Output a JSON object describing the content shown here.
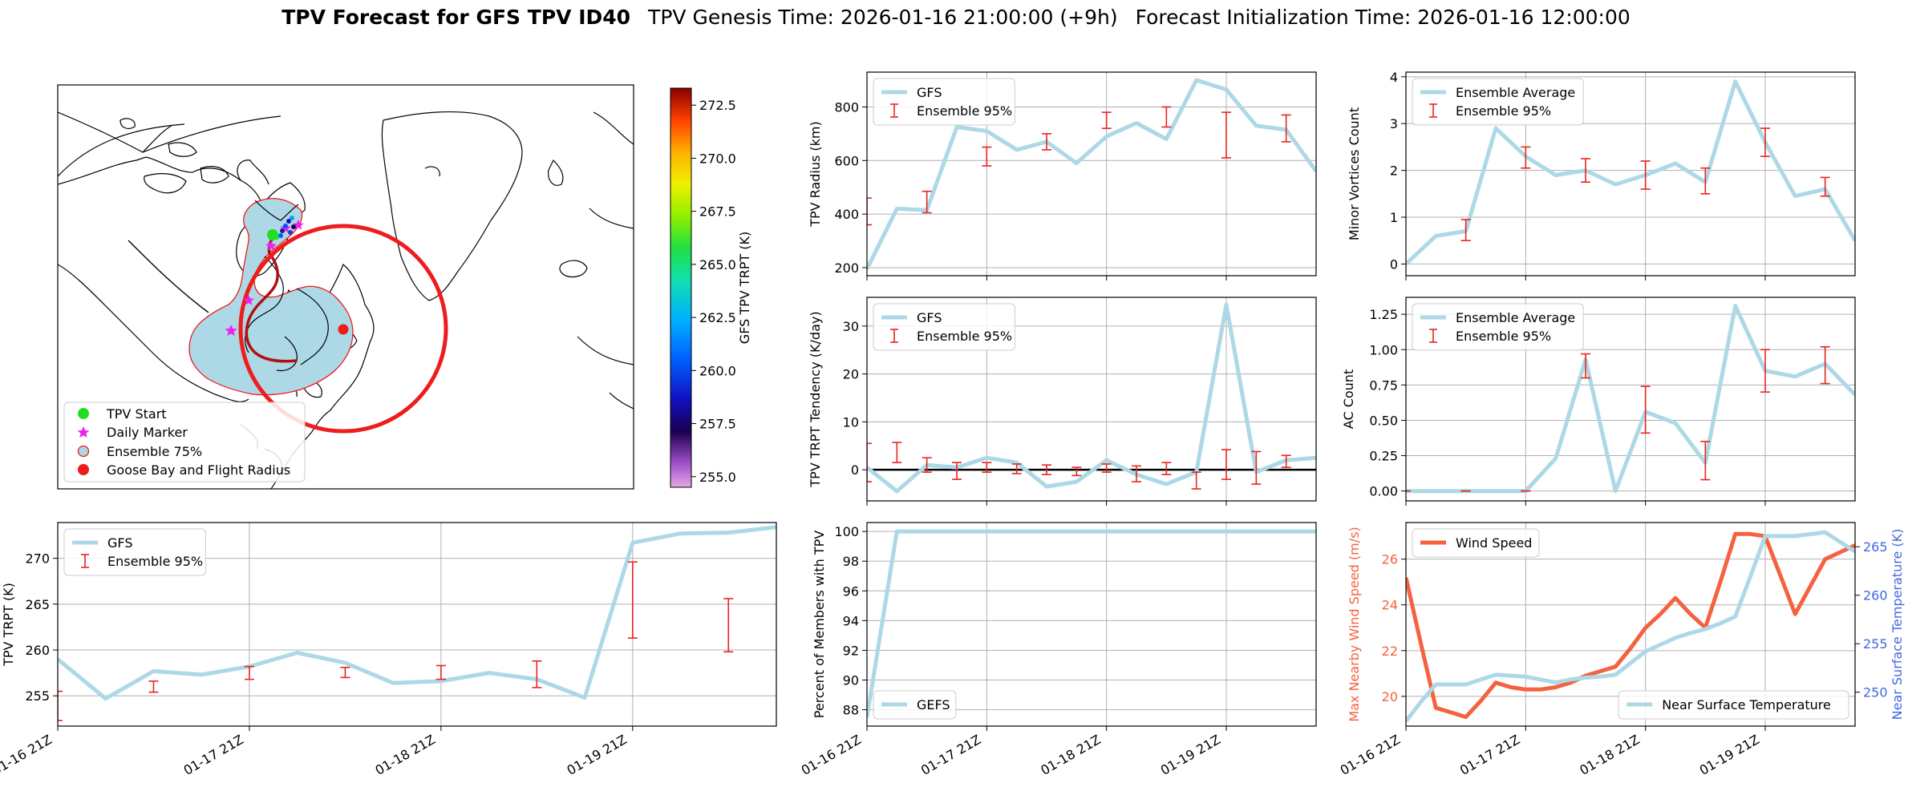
{
  "figure": {
    "title_bold": "TPV Forecast for GFS TPV ID40",
    "title_genesis": "TPV Genesis Time: 2026-01-16 21:00:00 (+9h)",
    "title_init": "Forecast Initialization Time: 2026-01-16 12:00:00"
  },
  "colors": {
    "gfs_line": "#add8e6",
    "errorbar": "#e8251f",
    "wind": "#f4623f",
    "temp_axis": "#4169e1",
    "ensemble_fill": "#add8e6",
    "flight_circle": "#ee1c1c",
    "start_marker": "#22dd22",
    "daily_marker": "#ee22ee"
  },
  "time_labels": [
    "01-16 21Z",
    "01-17 21Z",
    "01-18 21Z",
    "01-19 21Z"
  ],
  "map": {
    "legend": [
      "TPV Start",
      "Daily Marker",
      "Ensemble 75%",
      "Goose Bay and Flight Radius"
    ],
    "colorbar": {
      "label": "GFS TPV TRPT (K)",
      "min": 254.5,
      "max": 273.3,
      "ticks": [
        "272.5",
        "270.0",
        "267.5",
        "265.0",
        "262.5",
        "260.0",
        "257.5",
        "255.0"
      ],
      "tick_values": [
        272.5,
        270.0,
        267.5,
        265.0,
        262.5,
        260.0,
        257.5,
        255.0
      ]
    }
  },
  "chart_data": [
    {
      "id": "radius",
      "type": "line",
      "ylabel": "TPV Radius (km)",
      "ylim": [
        170,
        930
      ],
      "yticks": [
        200,
        400,
        600,
        800
      ],
      "ytick_labels": [
        "200",
        "400",
        "600",
        "800"
      ],
      "legend": [
        "GFS",
        "Ensemble 95%"
      ],
      "x_hours": [
        0,
        6,
        12,
        18,
        24,
        30,
        36,
        42,
        48,
        54,
        60,
        66,
        72,
        78,
        84,
        90
      ],
      "series": [
        {
          "name": "GFS",
          "values": [
            195,
            420,
            415,
            725,
            710,
            640,
            670,
            590,
            690,
            740,
            680,
            900,
            865,
            730,
            715,
            560
          ]
        }
      ],
      "errorbars": [
        {
          "x": 0,
          "low": 360,
          "high": 460
        },
        {
          "x": 12,
          "low": 405,
          "high": 485
        },
        {
          "x": 24,
          "low": 580,
          "high": 650
        },
        {
          "x": 36,
          "low": 640,
          "high": 700
        },
        {
          "x": 48,
          "low": 720,
          "high": 780
        },
        {
          "x": 60,
          "low": 725,
          "high": 800
        },
        {
          "x": 72,
          "low": 610,
          "high": 780
        },
        {
          "x": 84,
          "low": 670,
          "high": 770
        }
      ]
    },
    {
      "id": "minor",
      "type": "line",
      "ylabel": "Minor Vortices Count",
      "ylim": [
        -0.25,
        4.1
      ],
      "yticks": [
        0,
        1,
        2,
        3,
        4
      ],
      "ytick_labels": [
        "0",
        "1",
        "2",
        "3",
        "4"
      ],
      "legend": [
        "Ensemble Average",
        "Ensemble 95%"
      ],
      "x_hours": [
        0,
        6,
        12,
        18,
        24,
        30,
        36,
        42,
        48,
        54,
        60,
        66,
        72,
        78,
        84,
        90
      ],
      "series": [
        {
          "name": "Ensemble Average",
          "values": [
            0,
            0.6,
            0.7,
            2.9,
            2.3,
            1.9,
            2.0,
            1.7,
            1.9,
            2.15,
            1.75,
            3.9,
            2.6,
            1.45,
            1.6,
            0.5
          ]
        }
      ],
      "errorbars": [
        {
          "x": 12,
          "low": 0.5,
          "high": 0.95
        },
        {
          "x": 24,
          "low": 2.05,
          "high": 2.5
        },
        {
          "x": 36,
          "low": 1.75,
          "high": 2.25
        },
        {
          "x": 48,
          "low": 1.6,
          "high": 2.2
        },
        {
          "x": 60,
          "low": 1.5,
          "high": 2.05
        },
        {
          "x": 72,
          "low": 2.3,
          "high": 2.9
        },
        {
          "x": 84,
          "low": 1.45,
          "high": 1.85
        }
      ]
    },
    {
      "id": "tendency",
      "type": "line",
      "ylabel": "TPV TRPT Tendency (K/day)",
      "ylim": [
        -6.5,
        36
      ],
      "yticks": [
        0,
        10,
        20,
        30
      ],
      "ytick_labels": [
        "0",
        "10",
        "20",
        "30"
      ],
      "zero_line": true,
      "legend": [
        "GFS",
        "Ensemble 95%"
      ],
      "x_hours": [
        0,
        6,
        12,
        18,
        24,
        30,
        36,
        42,
        48,
        54,
        60,
        66,
        72,
        78,
        84,
        90
      ],
      "series": [
        {
          "name": "GFS",
          "values": [
            0.5,
            -4.5,
            1.0,
            0.5,
            2.5,
            1.5,
            -3.5,
            -2.5,
            2.0,
            -1.0,
            -3.0,
            -0.5,
            34.5,
            -0.5,
            2.0,
            2.5
          ]
        }
      ],
      "errorbars": [
        {
          "x": 0,
          "low": -2.5,
          "high": 5.5
        },
        {
          "x": 6,
          "low": 1.5,
          "high": 5.7
        },
        {
          "x": 12,
          "low": -0.5,
          "high": 2.5
        },
        {
          "x": 18,
          "low": -2.0,
          "high": 1.5
        },
        {
          "x": 24,
          "low": -0.5,
          "high": 1.5
        },
        {
          "x": 30,
          "low": -0.8,
          "high": 1.2
        },
        {
          "x": 36,
          "low": -1.0,
          "high": 1.0
        },
        {
          "x": 42,
          "low": -1.2,
          "high": 0.5
        },
        {
          "x": 48,
          "low": -0.5,
          "high": 1.2
        },
        {
          "x": 54,
          "low": -2.5,
          "high": 0.8
        },
        {
          "x": 60,
          "low": -1.0,
          "high": 1.5
        },
        {
          "x": 66,
          "low": -4.0,
          "high": -0.5
        },
        {
          "x": 72,
          "low": -2.0,
          "high": 4.2
        },
        {
          "x": 78,
          "low": -3.0,
          "high": 3.8
        },
        {
          "x": 84,
          "low": 0.5,
          "high": 3.0
        }
      ]
    },
    {
      "id": "ac",
      "type": "line",
      "ylabel": "AC Count",
      "ylim": [
        -0.07,
        1.37
      ],
      "yticks": [
        0,
        0.25,
        0.5,
        0.75,
        1.0,
        1.25
      ],
      "ytick_labels": [
        "0.00",
        "0.25",
        "0.50",
        "0.75",
        "1.00",
        "1.25"
      ],
      "legend": [
        "Ensemble Average",
        "Ensemble 95%"
      ],
      "x_hours": [
        0,
        6,
        12,
        18,
        24,
        30,
        36,
        42,
        48,
        54,
        60,
        66,
        72,
        78,
        84,
        90
      ],
      "series": [
        {
          "name": "Ensemble Average",
          "values": [
            0,
            0,
            0,
            0,
            0,
            0.23,
            0.93,
            0,
            0.56,
            0.48,
            0.2,
            1.31,
            0.85,
            0.81,
            0.9,
            0.68
          ]
        }
      ],
      "errorbars": [
        {
          "x": 0,
          "low": 0,
          "high": 0
        },
        {
          "x": 12,
          "low": 0,
          "high": 0
        },
        {
          "x": 24,
          "low": 0,
          "high": 0
        },
        {
          "x": 36,
          "low": 0.8,
          "high": 0.97
        },
        {
          "x": 48,
          "low": 0.41,
          "high": 0.74
        },
        {
          "x": 60,
          "low": 0.08,
          "high": 0.35
        },
        {
          "x": 72,
          "low": 0.7,
          "high": 1.0
        },
        {
          "x": 84,
          "low": 0.76,
          "high": 1.02
        }
      ]
    },
    {
      "id": "trpt",
      "type": "line",
      "ylabel": "TPV TRPT (K)",
      "ylim": [
        251.7,
        273.9
      ],
      "yticks": [
        255,
        260,
        265,
        270
      ],
      "ytick_labels": [
        "255",
        "260",
        "265",
        "270"
      ],
      "legend": [
        "GFS",
        "Ensemble 95%"
      ],
      "x_hours": [
        0,
        6,
        12,
        18,
        24,
        30,
        36,
        42,
        48,
        54,
        60,
        66,
        72,
        78,
        84,
        90
      ],
      "series": [
        {
          "name": "GFS",
          "values": [
            259.0,
            254.7,
            257.7,
            257.3,
            258.2,
            259.7,
            258.6,
            256.4,
            256.6,
            257.5,
            256.8,
            254.8,
            271.7,
            272.7,
            272.8,
            273.4
          ]
        }
      ],
      "errorbars": [
        {
          "x": 0,
          "low": 252.3,
          "high": 255.5
        },
        {
          "x": 12,
          "low": 255.4,
          "high": 256.6
        },
        {
          "x": 24,
          "low": 256.8,
          "high": 258.2
        },
        {
          "x": 36,
          "low": 257.0,
          "high": 258.1
        },
        {
          "x": 48,
          "low": 256.8,
          "high": 258.3
        },
        {
          "x": 60,
          "low": 255.9,
          "high": 258.8
        },
        {
          "x": 72,
          "low": 261.3,
          "high": 269.6
        },
        {
          "x": 84,
          "low": 259.8,
          "high": 265.6
        }
      ]
    },
    {
      "id": "percent",
      "type": "line",
      "ylabel": "Percent of Members with TPV",
      "ylim": [
        86.9,
        100.6
      ],
      "yticks": [
        88,
        90,
        92,
        94,
        96,
        98,
        100
      ],
      "ytick_labels": [
        "88",
        "90",
        "92",
        "94",
        "96",
        "98",
        "100"
      ],
      "legend": [
        "GEFS"
      ],
      "x_hours": [
        0,
        6,
        12,
        18,
        24,
        30,
        36,
        42,
        48,
        54,
        60,
        66,
        72,
        78,
        84,
        90
      ],
      "series": [
        {
          "name": "GEFS",
          "values": [
            87.5,
            100,
            100,
            100,
            100,
            100,
            100,
            100,
            100,
            100,
            100,
            100,
            100,
            100,
            100,
            100
          ]
        }
      ],
      "errorbars": []
    },
    {
      "id": "wind_temp",
      "type": "line",
      "ylabel": "Max Nearby Wind Speed (m/s)",
      "ylabel_right": "Near Surface Temperature (K)",
      "ylim": [
        18.7,
        27.6
      ],
      "yticks": [
        20,
        22,
        24,
        26
      ],
      "ytick_labels": [
        "20",
        "22",
        "24",
        "26"
      ],
      "ylim_right": [
        246.5,
        267.5
      ],
      "yticks_right": [
        250,
        255,
        260,
        265
      ],
      "ytick_labels_right": [
        "250",
        "255",
        "260",
        "265"
      ],
      "legend": [
        "Wind Speed"
      ],
      "legend_right": [
        "Near Surface Temperature"
      ],
      "x_hours": [
        0,
        3,
        6,
        9,
        12,
        15,
        18,
        21,
        24,
        27,
        30,
        33,
        36,
        39,
        42,
        45,
        48,
        51,
        54,
        57,
        60,
        63,
        66,
        69,
        72,
        75,
        78,
        81,
        84,
        87,
        90
      ],
      "series": [
        {
          "name": "Wind Speed",
          "values": [
            25.2,
            22.3,
            19.5,
            19.3,
            19.1,
            19.8,
            20.6,
            20.4,
            20.3,
            20.3,
            20.4,
            20.6,
            20.9,
            21.1,
            21.3,
            22.1,
            23.0,
            23.6,
            24.3,
            23.6,
            23.0,
            25.0,
            27.1,
            27.1,
            27.0,
            25.3,
            23.6,
            24.8,
            26.0,
            26.3,
            26.6
          ]
        },
        {
          "name": "Near Surface Temperature",
          "values": [
            247.0,
            249.0,
            250.8,
            250.8,
            250.8,
            251.3,
            251.8,
            251.7,
            251.6,
            251.3,
            251.0,
            251.3,
            251.5,
            251.6,
            251.8,
            253.0,
            254.2,
            254.9,
            255.6,
            256.1,
            256.5,
            257.1,
            257.8,
            261.9,
            266.1,
            266.1,
            266.1,
            266.3,
            266.5,
            265.5,
            264.5
          ]
        }
      ],
      "errorbars": []
    }
  ]
}
